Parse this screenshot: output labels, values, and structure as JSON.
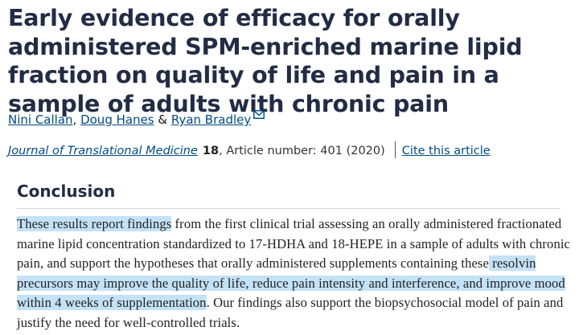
{
  "article": {
    "title": "Early evidence of efficacy for orally administered SPM-enriched marine lipid fraction on quality of life and pain in a sample of adults with chronic pain",
    "authors": [
      {
        "name": "Nini Callan",
        "separator": ", "
      },
      {
        "name": "Doug Hanes",
        "separator": " & "
      },
      {
        "name": "Ryan Bradley",
        "separator": ""
      }
    ],
    "journal": "Journal of Translational Medicine",
    "volume": "18",
    "article_info": ", Article number: 401 (2020)",
    "cite_label": "Cite this article"
  },
  "conclusion": {
    "heading": "Conclusion",
    "segments": [
      {
        "text": "These results report findings",
        "highlighted": true
      },
      {
        "text": " from the first clinical trial assessing an orally administered fractionated marine lipid concentration standardized to 17-HDHA and 18-HEPE in a sample of adults with chronic pain, and support the hypotheses that orally administered supplements containing these",
        "highlighted": false
      },
      {
        "text": " resolvin precursors may improve the quality of life, reduce pain intensity and interference, and improve mood within 4 weeks of supplementation",
        "highlighted": true
      },
      {
        "text": ". Our findings also support the biopsychosocial model of pain and justify the need for well-controlled trials.",
        "highlighted": false
      }
    ]
  },
  "colors": {
    "title": "#222c44",
    "link": "#004b83",
    "highlight": "#c3e2f7"
  },
  "icons": {
    "author_contact": "envelope-icon"
  }
}
